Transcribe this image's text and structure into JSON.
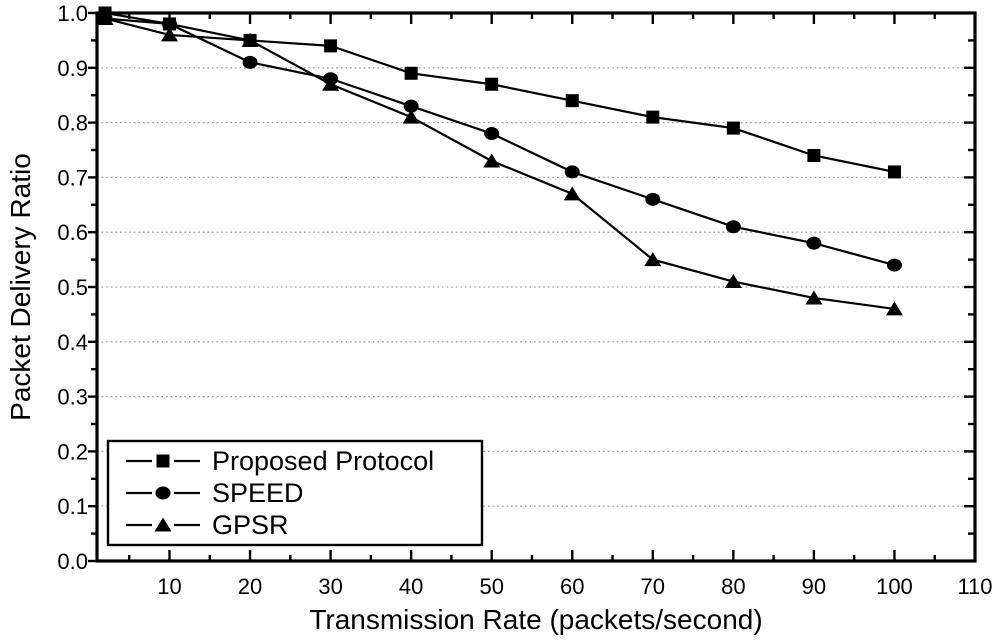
{
  "figure": {
    "background": "#ffffff",
    "line_color": "#000000",
    "grid_color": "#9c9c9c"
  },
  "chart_data": {
    "type": "line",
    "title": "",
    "xlabel": "Transmission Rate (packets/second)",
    "ylabel": "Packet Delivery Ratio",
    "xlim": [
      1,
      110
    ],
    "ylim": [
      0.0,
      1.0
    ],
    "x_major_ticks": [
      10,
      20,
      30,
      40,
      50,
      60,
      70,
      80,
      90,
      100,
      110
    ],
    "x_minor_ticks": [
      5,
      15,
      25,
      35,
      45,
      55,
      65,
      75,
      85,
      95,
      105
    ],
    "y_major_ticks": [
      0.0,
      0.1,
      0.2,
      0.3,
      0.4,
      0.5,
      0.6,
      0.7,
      0.8,
      0.9,
      1.0
    ],
    "y_minor_ticks": [
      0.05,
      0.15,
      0.25,
      0.35,
      0.45,
      0.55,
      0.65,
      0.75,
      0.85,
      0.95
    ],
    "grid": {
      "horizontal": true,
      "vertical": false,
      "style": "dotted",
      "levels": [
        0.1,
        0.2,
        0.3,
        0.4,
        0.5,
        0.6,
        0.7,
        0.8,
        0.9
      ]
    },
    "x": [
      2,
      10,
      20,
      30,
      40,
      50,
      60,
      70,
      80,
      90,
      100
    ],
    "series": [
      {
        "name": "Proposed Protocol",
        "marker": "square",
        "color": "#000000",
        "values": [
          1.0,
          0.98,
          0.95,
          0.94,
          0.89,
          0.87,
          0.84,
          0.81,
          0.79,
          0.74,
          0.71
        ]
      },
      {
        "name": "SPEED",
        "marker": "circle",
        "color": "#000000",
        "values": [
          0.99,
          0.98,
          0.91,
          0.88,
          0.83,
          0.78,
          0.71,
          0.66,
          0.61,
          0.58,
          0.54
        ]
      },
      {
        "name": "GPSR",
        "marker": "triangle",
        "color": "#000000",
        "values": [
          0.99,
          0.96,
          0.95,
          0.87,
          0.81,
          0.73,
          0.67,
          0.55,
          0.51,
          0.48,
          0.46
        ]
      }
    ],
    "legend": {
      "position": "bottom-left",
      "entries": [
        "Proposed Protocol",
        "SPEED",
        "GPSR"
      ]
    }
  }
}
